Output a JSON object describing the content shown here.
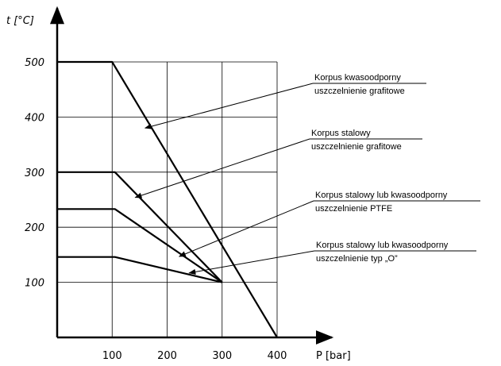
{
  "chart_data": {
    "type": "line",
    "xlabel": "P [bar]",
    "ylabel": "t [°C]",
    "xlim": [
      0,
      420
    ],
    "ylim": [
      0,
      560
    ],
    "x_ticks": [
      100,
      200,
      300,
      400
    ],
    "y_ticks": [
      100,
      200,
      300,
      400,
      500
    ],
    "grid": true,
    "series": [
      {
        "points": [
          [
            0,
            500
          ],
          [
            100,
            500
          ],
          [
            400,
            0
          ]
        ]
      },
      {
        "points": [
          [
            0,
            300
          ],
          [
            105,
            300
          ],
          [
            300,
            100
          ]
        ]
      },
      {
        "points": [
          [
            0,
            233
          ],
          [
            105,
            233
          ],
          [
            300,
            100
          ]
        ]
      },
      {
        "points": [
          [
            0,
            146
          ],
          [
            105,
            146
          ],
          [
            300,
            100
          ]
        ]
      }
    ],
    "annotations": [
      {
        "line1": "Korpus  kwasoodporny",
        "line2": "uszczelnienie grafitowe",
        "target": [
          160,
          380
        ]
      },
      {
        "line1": "Korpus  stalowy",
        "line2": "uszczelnienie grafitowe",
        "target": [
          142,
          254
        ]
      },
      {
        "line1": "Korpus  stalowy lub  kwasoodporny",
        "line2": "uszczelnienie PTFE",
        "target": [
          222,
          147
        ]
      },
      {
        "line1": "Korpus  stalowy lub  kwasoodporny",
        "line2": "uszczelnienie typ „O”",
        "target": [
          240,
          117
        ]
      }
    ]
  }
}
